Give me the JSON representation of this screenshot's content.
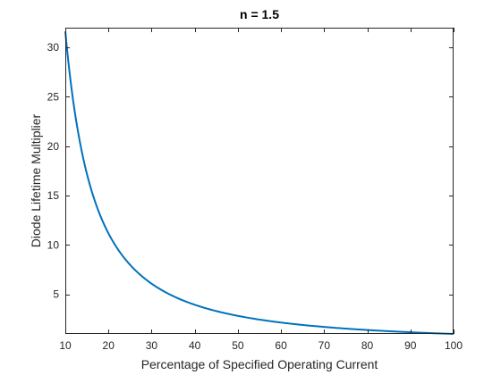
{
  "chart_data": {
    "type": "line",
    "title": "n = 1.5",
    "xlabel": "Percentage of Specified Operating Current",
    "ylabel": "Diode Lifetime Multiplier",
    "xlim": [
      10,
      100
    ],
    "ylim": [
      1,
      32
    ],
    "xticks": [
      10,
      20,
      30,
      40,
      50,
      60,
      70,
      80,
      90,
      100
    ],
    "yticks": [
      5,
      10,
      15,
      20,
      25,
      30
    ],
    "grid": false,
    "series": [
      {
        "formula": "y = (100 / x)^1.5",
        "x": [
          10,
          12,
          14,
          16,
          18,
          20,
          25,
          30,
          35,
          40,
          50,
          60,
          70,
          80,
          90,
          100
        ],
        "y": [
          31.62,
          24.06,
          19.09,
          15.63,
          13.09,
          11.18,
          8.0,
          6.09,
          4.83,
          3.95,
          2.83,
          2.15,
          1.71,
          1.4,
          1.17,
          1.0
        ],
        "color": "#0072BD"
      }
    ]
  }
}
